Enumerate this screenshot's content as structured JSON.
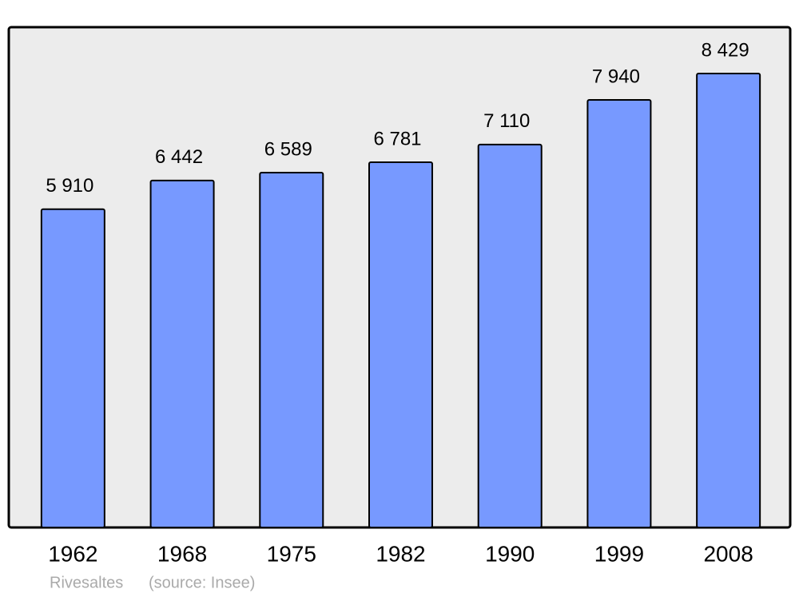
{
  "chart_data": {
    "type": "bar",
    "categories": [
      "1962",
      "1968",
      "1975",
      "1982",
      "1990",
      "1999",
      "2008"
    ],
    "values": [
      5910,
      6442,
      6589,
      6781,
      7110,
      7940,
      8429
    ],
    "value_labels": [
      "5 910",
      "6 442",
      "6 589",
      "6 781",
      "7 110",
      "7 940",
      "8 429"
    ],
    "color": "#7799ff",
    "footer": {
      "place": "Rivesaltes",
      "source": "(source: Insee)"
    }
  }
}
